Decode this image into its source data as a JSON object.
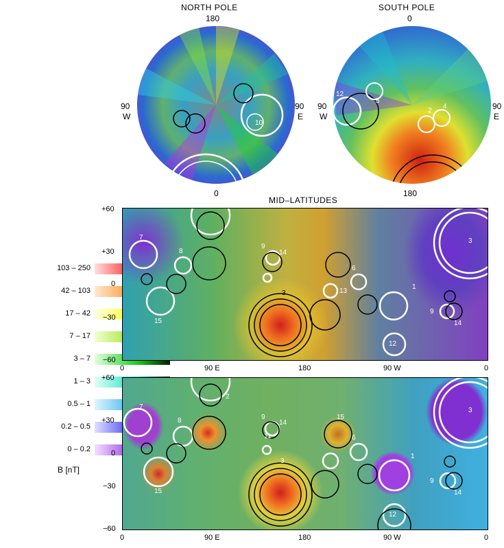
{
  "titles": {
    "north": "NORTH POLE",
    "south": "SOUTH POLE",
    "mid": "MID–LATITUDES"
  },
  "north_pole": {
    "top": "180",
    "bottom": "0",
    "left_num": "90",
    "left_dir": "W",
    "right_num": "90",
    "right_dir": "E",
    "crater_label": "10"
  },
  "south_pole": {
    "top": "0",
    "bottom": "180",
    "left_num": "90",
    "left_dir": "W",
    "right_num": "90",
    "right_dir": "E",
    "crater_labels": [
      "12",
      "5",
      "2",
      "4"
    ]
  },
  "axes": {
    "y_ticks": [
      "+60",
      "+30",
      "0",
      "−30",
      "−60"
    ],
    "x_ticks": [
      "0",
      "90 E",
      "180",
      "90 W",
      "0"
    ]
  },
  "crater_labels": [
    "7",
    "8",
    "3",
    "9",
    "14",
    "6",
    "13",
    "3",
    "15",
    "1",
    "9",
    "14",
    "12",
    "11",
    "15",
    "10",
    "2"
  ],
  "legend": {
    "title": "B [nT]",
    "items": [
      {
        "label": "103 – 250",
        "c1": "#ffe0e0",
        "c2": "#ff2020",
        "c3": "#200000"
      },
      {
        "label": "42 – 103",
        "c1": "#ffe8d0",
        "c2": "#ff9020",
        "c3": "#201000"
      },
      {
        "label": "17 – 42",
        "c1": "#ffffe0",
        "c2": "#ffff20",
        "c3": "#202000"
      },
      {
        "label": "7 – 17",
        "c1": "#f0ffd0",
        "c2": "#a0e020",
        "c3": "#102000"
      },
      {
        "label": "3 – 7",
        "c1": "#e0ffe0",
        "c2": "#20d020",
        "c3": "#002000"
      },
      {
        "label": "1 – 3",
        "c1": "#e0fff8",
        "c2": "#20e0c0",
        "c3": "#002018"
      },
      {
        "label": "0.5 – 1",
        "c1": "#e0f4ff",
        "c2": "#30b0f0",
        "c3": "#001020"
      },
      {
        "label": "0.2 – 0.5",
        "c1": "#e0e0ff",
        "c2": "#3030f0",
        "c3": "#000020"
      },
      {
        "label": "0 – 0.2",
        "c1": "#f4e0ff",
        "c2": "#9030e0",
        "c3": "#100020"
      }
    ]
  }
}
